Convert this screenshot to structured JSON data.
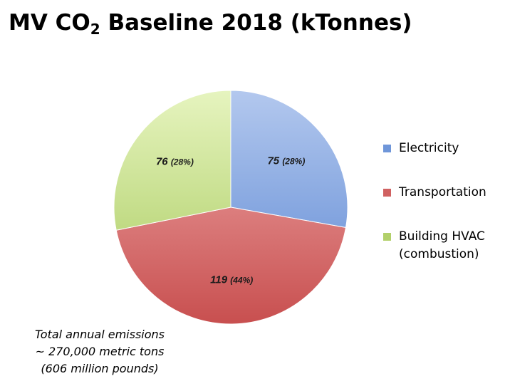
{
  "title": {
    "prefix": "MV CO",
    "subscript": "2",
    "suffix": " Baseline 2018 (kTonnes)"
  },
  "chart_data": {
    "type": "pie",
    "title": "MV CO2 Baseline 2018 (kTonnes)",
    "start_angle_deg": 0,
    "direction": "clockwise",
    "legend_position": "right",
    "slices": [
      {
        "name": "Electricity",
        "value": 75,
        "value_label": "75",
        "percent_label": "(28%)",
        "color_light": "#b3c8ee",
        "color_dark": "#5b87d3",
        "swatch": "#6f96d9"
      },
      {
        "name": "Transportation",
        "value": 119,
        "value_label": "119",
        "percent_label": "(44%)",
        "color_light": "#f0adad",
        "color_dark": "#c84f4f",
        "swatch": "#d06161"
      },
      {
        "name": "Building HVAC (combustion)",
        "value": 76,
        "value_label": "76",
        "percent_label": "(28%)",
        "color_light": "#e6f4bf",
        "color_dark": "#a6c95a",
        "swatch": "#b2d06a"
      }
    ]
  },
  "legend": {
    "items": [
      {
        "lines": [
          "Electricity"
        ]
      },
      {
        "lines": [
          "Transportation"
        ]
      },
      {
        "lines": [
          "Building HVAC",
          "(combustion)"
        ]
      }
    ]
  },
  "note": {
    "lines": [
      "Total annual emissions",
      "~ 270,000 metric tons",
      "(606 million pounds)"
    ]
  }
}
